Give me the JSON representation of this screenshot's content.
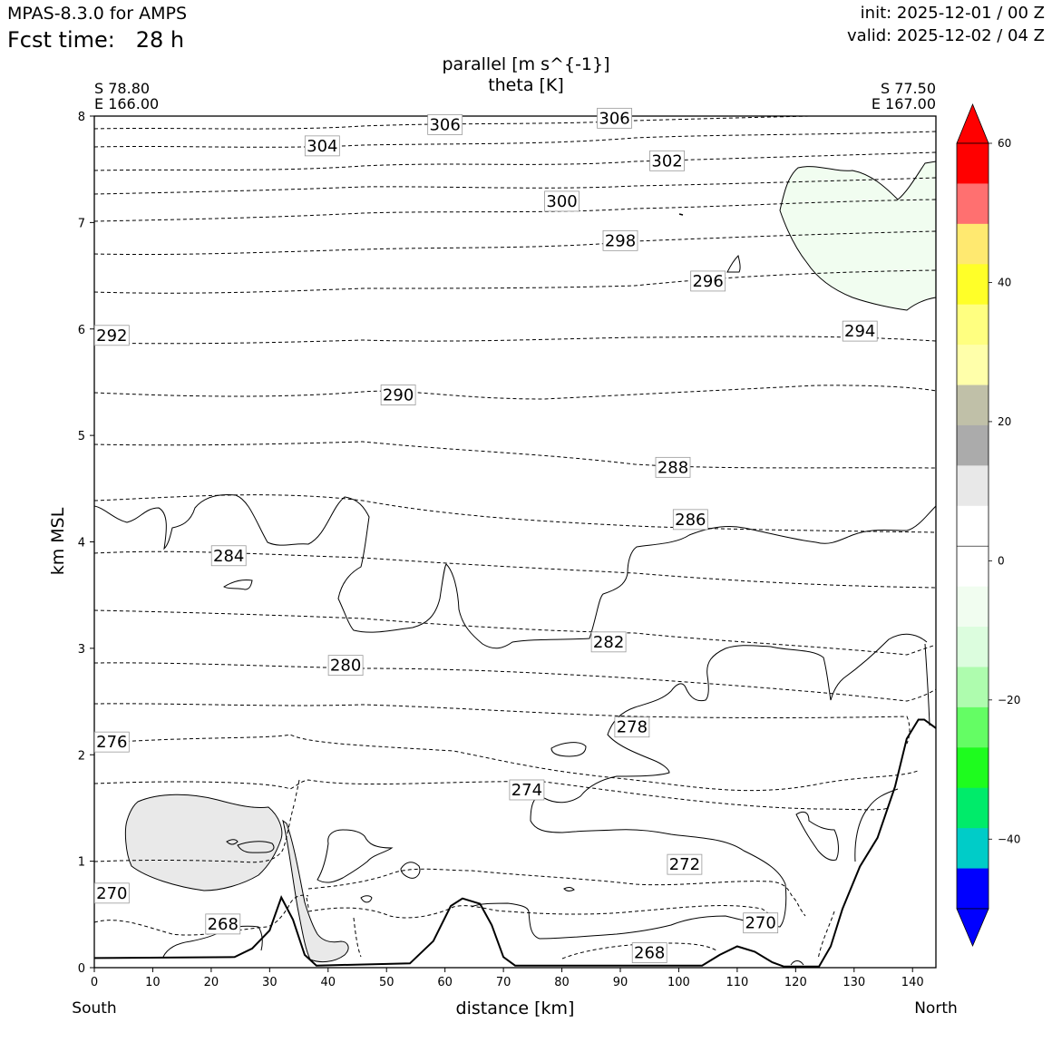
{
  "header": {
    "model": "MPAS-8.3.0 for AMPS",
    "fcst_label": "Fcst time:",
    "fcst_value": "28 h",
    "init": "init: 2025-12-01 / 00 Z",
    "valid": "valid: 2025-12-02 / 04 Z"
  },
  "titles": {
    "line1": "parallel [m s^{-1}]",
    "line2": "theta [K]"
  },
  "endpoints": {
    "left_lat": "S 78.80",
    "left_lon": "E 166.00",
    "right_lat": "S 77.50",
    "right_lon": "E 167.00",
    "left_dir": "South",
    "right_dir": "North"
  },
  "chart_data": {
    "type": "cross-section contour",
    "xlabel": "distance [km]",
    "ylabel": "km MSL",
    "xlim": [
      0,
      144
    ],
    "ylim": [
      0,
      8
    ],
    "xticks": [
      0,
      10,
      20,
      30,
      40,
      50,
      60,
      70,
      80,
      90,
      100,
      110,
      120,
      130,
      140
    ],
    "yticks": [
      0,
      1,
      2,
      3,
      4,
      5,
      6,
      7,
      8
    ],
    "terrain": [
      [
        0,
        0.09
      ],
      [
        24,
        0.1
      ],
      [
        27,
        0.18
      ],
      [
        30,
        0.35
      ],
      [
        32,
        0.66
      ],
      [
        34,
        0.45
      ],
      [
        36,
        0.12
      ],
      [
        38,
        0.02
      ],
      [
        54,
        0.04
      ],
      [
        58,
        0.25
      ],
      [
        61,
        0.58
      ],
      [
        63,
        0.65
      ],
      [
        66,
        0.6
      ],
      [
        68,
        0.4
      ],
      [
        70,
        0.1
      ],
      [
        72,
        0.02
      ],
      [
        104,
        0.02
      ],
      [
        107,
        0.12
      ],
      [
        110,
        0.2
      ],
      [
        113,
        0.15
      ],
      [
        116,
        0.05
      ],
      [
        118,
        0.01
      ],
      [
        124,
        0.01
      ],
      [
        126,
        0.2
      ],
      [
        128,
        0.55
      ],
      [
        131,
        0.95
      ],
      [
        134,
        1.22
      ],
      [
        137,
        1.7
      ],
      [
        139,
        2.15
      ],
      [
        141,
        2.33
      ],
      [
        142,
        2.33
      ],
      [
        144,
        2.25
      ]
    ],
    "theta_labels": [
      {
        "value": "306",
        "x": 60,
        "y": 7.92
      },
      {
        "value": "306",
        "x": 89,
        "y": 7.98
      },
      {
        "value": "304",
        "x": 39,
        "y": 7.72
      },
      {
        "value": "302",
        "x": 98,
        "y": 7.58
      },
      {
        "value": "300",
        "x": 80,
        "y": 7.2
      },
      {
        "value": "298",
        "x": 90,
        "y": 6.83
      },
      {
        "value": "296",
        "x": 105,
        "y": 6.45
      },
      {
        "value": "294",
        "x": 131,
        "y": 5.98
      },
      {
        "value": "292",
        "x": 3,
        "y": 5.94
      },
      {
        "value": "290",
        "x": 52,
        "y": 5.38
      },
      {
        "value": "288",
        "x": 99,
        "y": 4.7
      },
      {
        "value": "286",
        "x": 102,
        "y": 4.21
      },
      {
        "value": "284",
        "x": 23,
        "y": 3.87
      },
      {
        "value": "282",
        "x": 88,
        "y": 3.06
      },
      {
        "value": "280",
        "x": 43,
        "y": 2.84
      },
      {
        "value": "278",
        "x": 92,
        "y": 2.26
      },
      {
        "value": "276",
        "x": 3,
        "y": 2.12
      },
      {
        "value": "274",
        "x": 74,
        "y": 1.67
      },
      {
        "value": "272",
        "x": 101,
        "y": 0.97
      },
      {
        "value": "270",
        "x": 3,
        "y": 0.7
      },
      {
        "value": "270",
        "x": 114,
        "y": 0.42
      },
      {
        "value": "268",
        "x": 22,
        "y": 0.41
      },
      {
        "value": "268",
        "x": 95,
        "y": 0.14
      }
    ],
    "colorbar": {
      "ticks": [
        "60",
        "40",
        "20",
        "0",
        "−20",
        "−40"
      ],
      "tick_values": [
        60,
        40,
        20,
        0,
        -20,
        -40
      ],
      "range": [
        -50,
        60
      ],
      "step": 6,
      "colors_top_to_bottom": [
        "#ff0000",
        "#ff7070",
        "#ffe970",
        "#ffff28",
        "#ffff80",
        "#ffffaa",
        "#c0c0a8",
        "#ababab",
        "#e8e8e8",
        "#ffffff",
        "#ffffff",
        "#f1fdf0",
        "#dcfdde",
        "#aefcae",
        "#64fd64",
        "#1efc1e",
        "#00eb6a",
        "#00ccc8",
        "#0000ff"
      ],
      "extend_top": "#ff0000",
      "extend_bottom": "#0000ff"
    }
  }
}
